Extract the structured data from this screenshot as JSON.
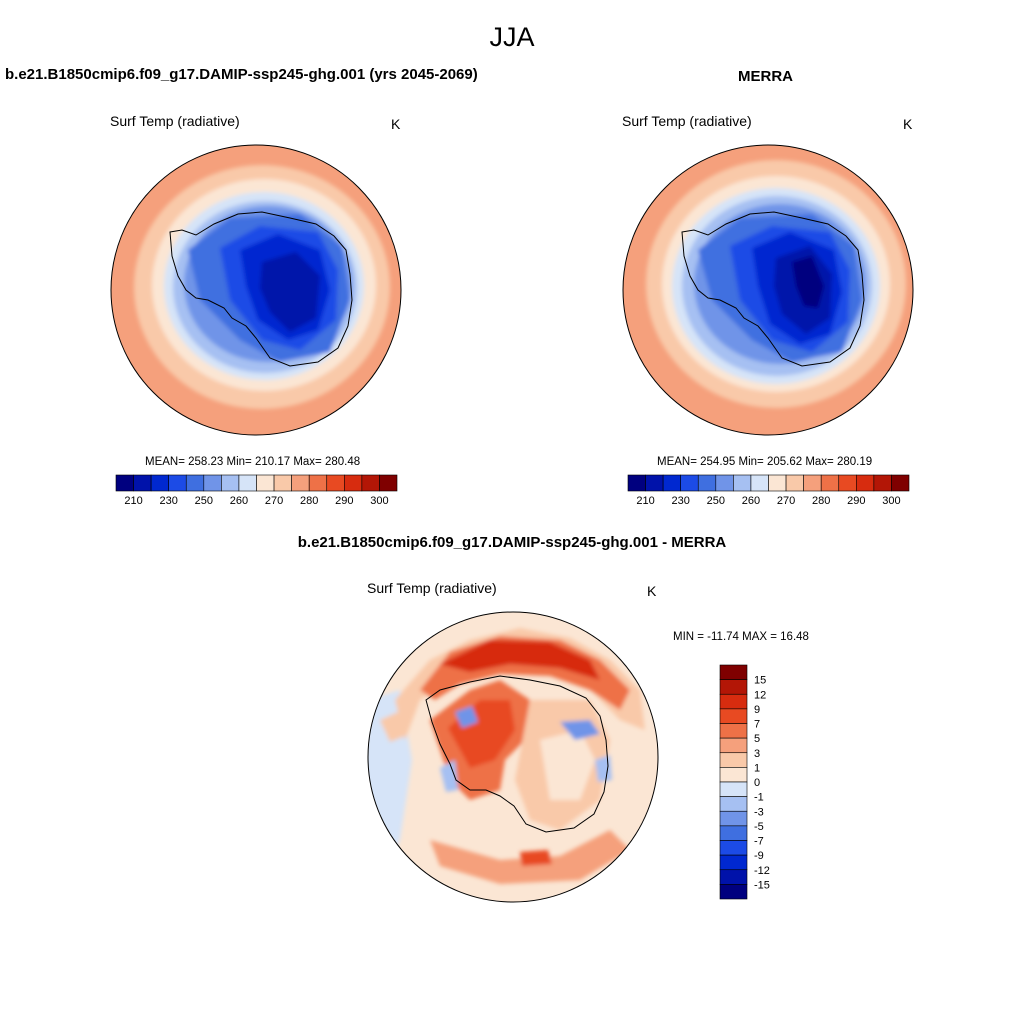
{
  "season_title": "JJA",
  "panels": [
    {
      "title": "b.e21.B1850cmip6.f09_g17.DAMIP-ssp245-ghg.001 (yrs 2045-2069)",
      "variable": "Surf Temp (radiative)",
      "units": "K",
      "stats": {
        "mean": "258.23",
        "min": "210.17",
        "max": "280.48"
      },
      "stats_text": "MEAN= 258.23  Min= 210.17  Max= 280.48"
    },
    {
      "title": "MERRA",
      "variable": "Surf Temp (radiative)",
      "units": "K",
      "stats": {
        "mean": "254.95",
        "min": "205.62",
        "max": "280.19"
      },
      "stats_text": "MEAN= 254.95  Min= 205.62  Max= 280.19"
    },
    {
      "title": "b.e21.B1850cmip6.f09_g17.DAMIP-ssp245-ghg.001 - MERRA",
      "variable": "Surf Temp (radiative)",
      "units": "K",
      "stats": {
        "min": "-11.74",
        "max": "16.48"
      },
      "stats_text": "MIN = -11.74 MAX =  16.48"
    }
  ],
  "chart_data": [
    {
      "type": "heatmap",
      "projection": "south-polar-stereographic",
      "title": "b.e21.B1850cmip6.f09_g17.DAMIP-ssp245-ghg.001 (yrs 2045-2069)",
      "variable": "Surf Temp (radiative)",
      "units": "K",
      "mean": 258.23,
      "min": 210.17,
      "max": 280.48,
      "colorbar_levels": [
        205,
        210,
        220,
        230,
        240,
        250,
        255,
        260,
        265,
        270,
        275,
        280,
        285,
        290,
        295,
        300
      ],
      "colorbar_ticks": [
        "210",
        "230",
        "250",
        "260",
        "270",
        "280",
        "290",
        "300"
      ],
      "colorbar_colors": [
        "#00007f",
        "#0012aa",
        "#0028d0",
        "#1c4be6",
        "#3f6fe0",
        "#7094e8",
        "#a6c0f2",
        "#d6e4f8",
        "#fbe6d4",
        "#f9c9a9",
        "#f5a07c",
        "#ee7147",
        "#e84a22",
        "#d72c0f",
        "#b31606",
        "#7f0000"
      ],
      "legend_position": "bottom"
    },
    {
      "type": "heatmap",
      "projection": "south-polar-stereographic",
      "title": "MERRA",
      "variable": "Surf Temp (radiative)",
      "units": "K",
      "mean": 254.95,
      "min": 205.62,
      "max": 280.19,
      "colorbar_levels": [
        205,
        210,
        220,
        230,
        240,
        250,
        255,
        260,
        265,
        270,
        275,
        280,
        285,
        290,
        295,
        300
      ],
      "colorbar_ticks": [
        "210",
        "230",
        "250",
        "260",
        "270",
        "280",
        "290",
        "300"
      ],
      "colorbar_colors": [
        "#00007f",
        "#0012aa",
        "#0028d0",
        "#1c4be6",
        "#3f6fe0",
        "#7094e8",
        "#a6c0f2",
        "#d6e4f8",
        "#fbe6d4",
        "#f9c9a9",
        "#f5a07c",
        "#ee7147",
        "#e84a22",
        "#d72c0f",
        "#b31606",
        "#7f0000"
      ],
      "legend_position": "bottom"
    },
    {
      "type": "heatmap",
      "projection": "south-polar-stereographic",
      "title": "b.e21.B1850cmip6.f09_g17.DAMIP-ssp245-ghg.001 - MERRA",
      "variable": "Surf Temp (radiative)",
      "units": "K",
      "min": -11.74,
      "max": 16.48,
      "colorbar_levels": [
        -15,
        -12,
        -9,
        -7,
        -5,
        -3,
        -1,
        0,
        1,
        3,
        5,
        7,
        9,
        12,
        15
      ],
      "colorbar_ticks": [
        "15",
        "12",
        "9",
        "7",
        "5",
        "3",
        "1",
        "0",
        "-1",
        "-3",
        "-5",
        "-7",
        "-9",
        "-12",
        "-15"
      ],
      "colorbar_colors": [
        "#7f0000",
        "#b31606",
        "#d72c0f",
        "#e84a22",
        "#ee7147",
        "#f5a07c",
        "#f9c9a9",
        "#fbe6d4",
        "#d6e4f8",
        "#a6c0f2",
        "#7094e8",
        "#3f6fe0",
        "#1c4be6",
        "#0028d0",
        "#0012aa",
        "#00007f"
      ],
      "legend_position": "right"
    }
  ]
}
